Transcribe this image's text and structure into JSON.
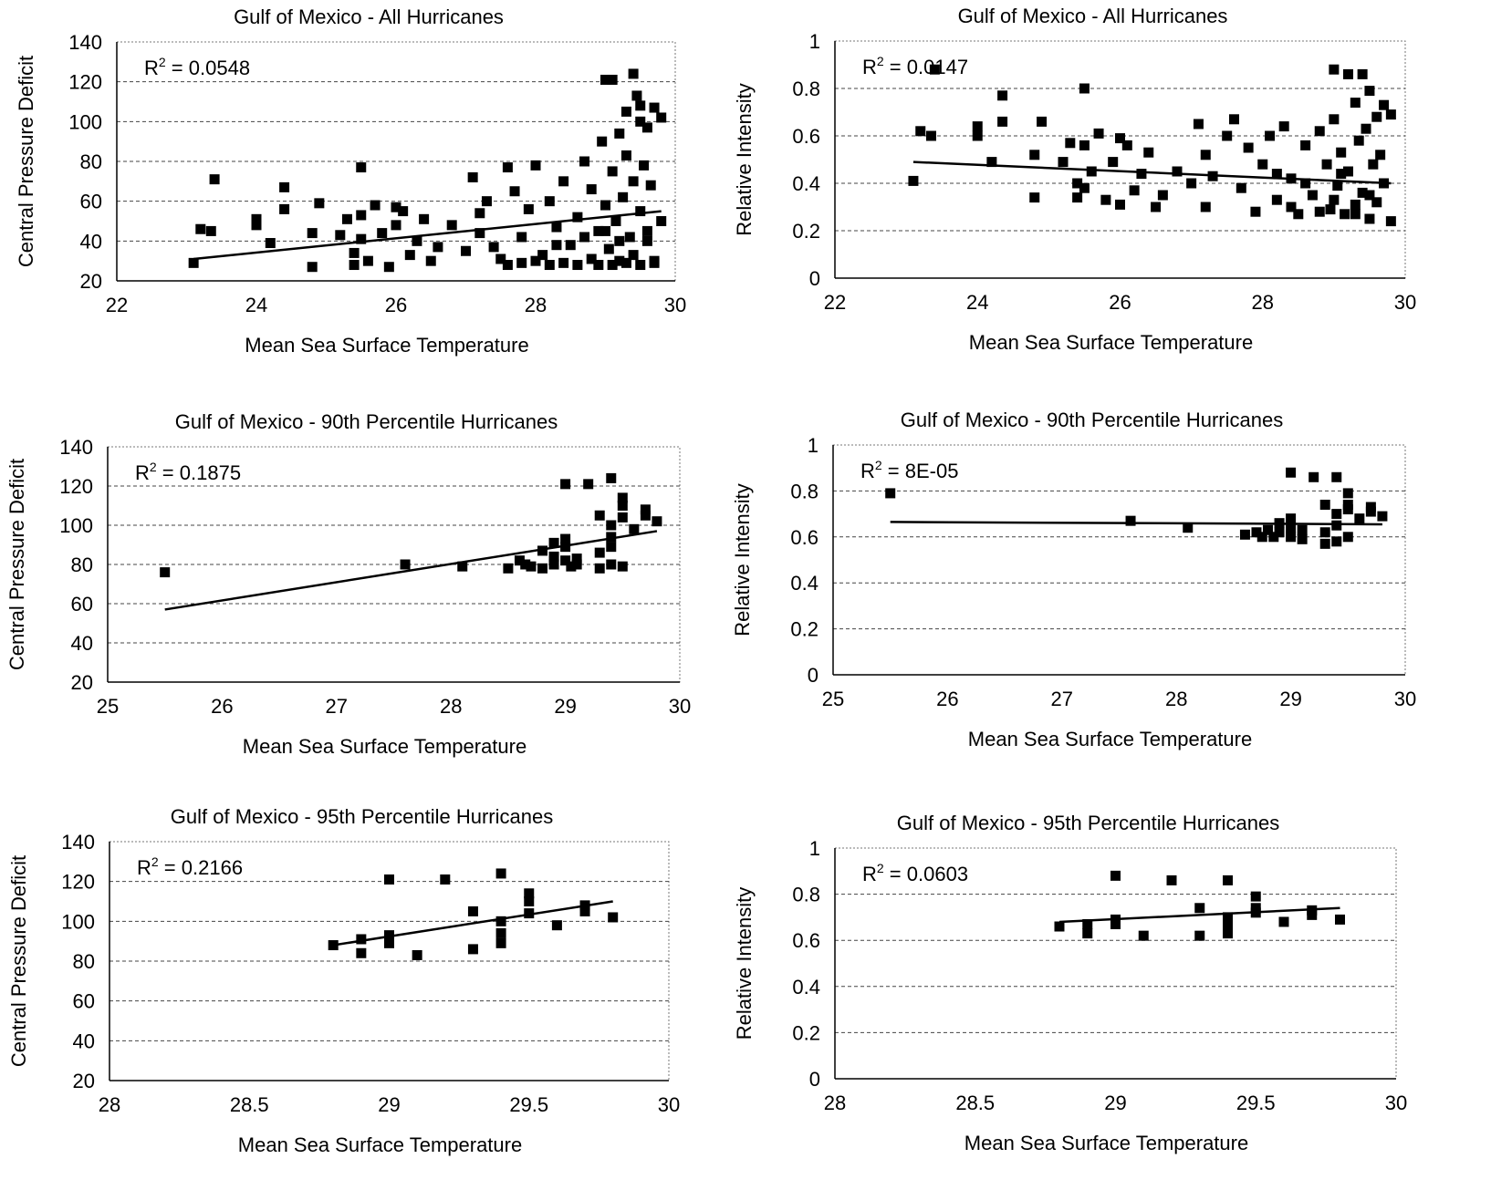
{
  "chart_data": [
    {
      "type": "scatter",
      "title": "Gulf of Mexico - All Hurricanes",
      "xlabel": "Mean Sea Surface Temperature",
      "ylabel": "Central Pressure Deficit",
      "xlim": [
        22,
        30
      ],
      "ylim": [
        20,
        140
      ],
      "xticks": [
        "22",
        "24",
        "26",
        "28",
        "30"
      ],
      "yticks": [
        "20",
        "40",
        "60",
        "80",
        "100",
        "120",
        "140"
      ],
      "grid": true,
      "r2": {
        "base": "R",
        "sup": "2",
        "value": " = 0.0548"
      },
      "trendline": [
        [
          23.1,
          31
        ],
        [
          29.8,
          55
        ]
      ],
      "points": [
        [
          23.1,
          29
        ],
        [
          23.2,
          46
        ],
        [
          23.35,
          45
        ],
        [
          23.4,
          71
        ],
        [
          24.0,
          48
        ],
        [
          24.0,
          51
        ],
        [
          24.2,
          39
        ],
        [
          24.4,
          56
        ],
        [
          24.4,
          67
        ],
        [
          24.8,
          44
        ],
        [
          24.8,
          27
        ],
        [
          24.9,
          59
        ],
        [
          25.2,
          43
        ],
        [
          25.3,
          51
        ],
        [
          25.4,
          28
        ],
        [
          25.4,
          34
        ],
        [
          25.5,
          53
        ],
        [
          25.5,
          41
        ],
        [
          25.5,
          77
        ],
        [
          25.6,
          30
        ],
        [
          25.7,
          58
        ],
        [
          25.8,
          44
        ],
        [
          25.9,
          27
        ],
        [
          26.0,
          48
        ],
        [
          26.0,
          57
        ],
        [
          26.1,
          55
        ],
        [
          26.2,
          33
        ],
        [
          26.3,
          40
        ],
        [
          26.4,
          51
        ],
        [
          26.5,
          30
        ],
        [
          26.6,
          37
        ],
        [
          26.8,
          48
        ],
        [
          27.0,
          35
        ],
        [
          27.1,
          72
        ],
        [
          27.2,
          54
        ],
        [
          27.2,
          44
        ],
        [
          27.3,
          60
        ],
        [
          27.4,
          37
        ],
        [
          27.5,
          31
        ],
        [
          27.6,
          77
        ],
        [
          27.7,
          65
        ],
        [
          27.8,
          42
        ],
        [
          27.9,
          56
        ],
        [
          28.0,
          78
        ],
        [
          28.1,
          33
        ],
        [
          28.2,
          60
        ],
        [
          28.3,
          47
        ],
        [
          28.4,
          70
        ],
        [
          28.5,
          38
        ],
        [
          28.6,
          52
        ],
        [
          28.7,
          80
        ],
        [
          28.8,
          66
        ],
        [
          28.8,
          31
        ],
        [
          28.9,
          45
        ],
        [
          28.95,
          90
        ],
        [
          29.0,
          121
        ],
        [
          29.0,
          58
        ],
        [
          29.05,
          36
        ],
        [
          29.1,
          75
        ],
        [
          29.1,
          121
        ],
        [
          29.15,
          50
        ],
        [
          29.2,
          94
        ],
        [
          29.2,
          30
        ],
        [
          29.25,
          62
        ],
        [
          29.3,
          83
        ],
        [
          29.3,
          105
        ],
        [
          29.35,
          42
        ],
        [
          29.4,
          124
        ],
        [
          29.4,
          70
        ],
        [
          29.4,
          33
        ],
        [
          29.45,
          113
        ],
        [
          29.5,
          100
        ],
        [
          29.5,
          55
        ],
        [
          29.5,
          108
        ],
        [
          29.55,
          78
        ],
        [
          29.6,
          97
        ],
        [
          29.6,
          40
        ],
        [
          29.65,
          68
        ],
        [
          29.7,
          107
        ],
        [
          29.7,
          30
        ],
        [
          29.8,
          102
        ],
        [
          29.8,
          50
        ],
        [
          27.6,
          28
        ],
        [
          27.8,
          29
        ],
        [
          28.0,
          30
        ],
        [
          28.2,
          28
        ],
        [
          28.4,
          29
        ],
        [
          28.6,
          28
        ],
        [
          28.9,
          28
        ],
        [
          29.1,
          28
        ],
        [
          29.3,
          29
        ],
        [
          29.5,
          28
        ],
        [
          29.7,
          29
        ],
        [
          28.3,
          38
        ],
        [
          28.7,
          42
        ],
        [
          29.0,
          45
        ],
        [
          29.2,
          40
        ],
        [
          29.6,
          45
        ]
      ]
    },
    {
      "type": "scatter",
      "title": "Gulf of Mexico - All Hurricanes",
      "xlabel": "Mean Sea Surface Temperature",
      "ylabel": "Relative Intensity",
      "xlim": [
        22,
        30
      ],
      "ylim": [
        0,
        1
      ],
      "xticks": [
        "22",
        "24",
        "26",
        "28",
        "30"
      ],
      "yticks": [
        "0",
        "0.2",
        "0.4",
        "0.6",
        "0.8",
        "1"
      ],
      "grid": true,
      "r2": {
        "base": "R",
        "sup": "2",
        "value": " = 0.0147"
      },
      "trendline": [
        [
          23.1,
          0.49
        ],
        [
          29.8,
          0.4
        ]
      ],
      "points": [
        [
          23.1,
          0.41
        ],
        [
          23.2,
          0.62
        ],
        [
          23.35,
          0.6
        ],
        [
          23.4,
          0.88
        ],
        [
          24.0,
          0.64
        ],
        [
          24.0,
          0.6
        ],
        [
          24.2,
          0.49
        ],
        [
          24.35,
          0.77
        ],
        [
          24.35,
          0.66
        ],
        [
          24.8,
          0.52
        ],
        [
          24.8,
          0.34
        ],
        [
          24.9,
          0.66
        ],
        [
          25.2,
          0.49
        ],
        [
          25.3,
          0.57
        ],
        [
          25.4,
          0.34
        ],
        [
          25.4,
          0.4
        ],
        [
          25.5,
          0.8
        ],
        [
          25.5,
          0.56
        ],
        [
          25.5,
          0.38
        ],
        [
          25.6,
          0.45
        ],
        [
          25.7,
          0.61
        ],
        [
          25.8,
          0.33
        ],
        [
          25.9,
          0.49
        ],
        [
          26.0,
          0.59
        ],
        [
          26.0,
          0.31
        ],
        [
          26.1,
          0.56
        ],
        [
          26.2,
          0.37
        ],
        [
          26.3,
          0.44
        ],
        [
          26.4,
          0.53
        ],
        [
          26.5,
          0.3
        ],
        [
          26.6,
          0.35
        ],
        [
          26.8,
          0.45
        ],
        [
          27.0,
          0.4
        ],
        [
          27.1,
          0.65
        ],
        [
          27.2,
          0.52
        ],
        [
          27.2,
          0.3
        ],
        [
          27.3,
          0.43
        ],
        [
          27.5,
          0.6
        ],
        [
          27.6,
          0.67
        ],
        [
          27.7,
          0.38
        ],
        [
          27.8,
          0.55
        ],
        [
          27.9,
          0.28
        ],
        [
          28.0,
          0.48
        ],
        [
          28.1,
          0.6
        ],
        [
          28.2,
          0.33
        ],
        [
          28.3,
          0.64
        ],
        [
          28.4,
          0.42
        ],
        [
          28.5,
          0.27
        ],
        [
          28.6,
          0.56
        ],
        [
          28.7,
          0.35
        ],
        [
          28.8,
          0.62
        ],
        [
          28.9,
          0.48
        ],
        [
          28.95,
          0.29
        ],
        [
          29.0,
          0.88
        ],
        [
          29.0,
          0.67
        ],
        [
          29.05,
          0.39
        ],
        [
          29.1,
          0.53
        ],
        [
          29.15,
          0.27
        ],
        [
          29.2,
          0.86
        ],
        [
          29.2,
          0.45
        ],
        [
          29.3,
          0.74
        ],
        [
          29.3,
          0.31
        ],
        [
          29.35,
          0.58
        ],
        [
          29.4,
          0.86
        ],
        [
          29.4,
          0.36
        ],
        [
          29.45,
          0.63
        ],
        [
          29.5,
          0.79
        ],
        [
          29.5,
          0.25
        ],
        [
          29.55,
          0.48
        ],
        [
          29.6,
          0.68
        ],
        [
          29.6,
          0.32
        ],
        [
          29.65,
          0.52
        ],
        [
          29.7,
          0.73
        ],
        [
          29.7,
          0.4
        ],
        [
          29.8,
          0.69
        ],
        [
          29.8,
          0.24
        ],
        [
          28.4,
          0.3
        ],
        [
          28.8,
          0.28
        ],
        [
          29.0,
          0.33
        ],
        [
          29.3,
          0.27
        ],
        [
          29.5,
          0.35
        ],
        [
          28.2,
          0.44
        ],
        [
          28.6,
          0.4
        ],
        [
          29.1,
          0.44
        ]
      ]
    },
    {
      "type": "scatter",
      "title": "Gulf of Mexico - 90th Percentile Hurricanes",
      "xlabel": "Mean Sea Surface Temperature",
      "ylabel": "Central Pressure Deficit",
      "xlim": [
        25,
        30
      ],
      "ylim": [
        20,
        140
      ],
      "xticks": [
        "25",
        "26",
        "27",
        "28",
        "29",
        "30"
      ],
      "yticks": [
        "20",
        "40",
        "60",
        "80",
        "100",
        "120",
        "140"
      ],
      "grid": true,
      "r2": {
        "base": "R",
        "sup": "2",
        "value": " = 0.1875"
      },
      "trendline": [
        [
          25.5,
          57
        ],
        [
          29.8,
          97
        ]
      ],
      "points": [
        [
          25.5,
          76
        ],
        [
          27.6,
          80
        ],
        [
          28.1,
          79
        ],
        [
          28.5,
          78
        ],
        [
          28.6,
          82
        ],
        [
          28.65,
          80
        ],
        [
          28.7,
          79
        ],
        [
          28.8,
          78
        ],
        [
          28.8,
          87
        ],
        [
          28.9,
          80
        ],
        [
          28.9,
          91
        ],
        [
          28.9,
          84
        ],
        [
          29.0,
          121
        ],
        [
          29.0,
          93
        ],
        [
          29.0,
          89
        ],
        [
          29.0,
          82
        ],
        [
          29.05,
          79
        ],
        [
          29.1,
          80
        ],
        [
          29.1,
          83
        ],
        [
          29.2,
          121
        ],
        [
          29.3,
          105
        ],
        [
          29.3,
          86
        ],
        [
          29.3,
          78
        ],
        [
          29.4,
          124
        ],
        [
          29.4,
          100
        ],
        [
          29.4,
          94
        ],
        [
          29.4,
          89
        ],
        [
          29.4,
          80
        ],
        [
          29.5,
          114
        ],
        [
          29.5,
          110
        ],
        [
          29.5,
          104
        ],
        [
          29.5,
          79
        ],
        [
          29.6,
          98
        ],
        [
          29.7,
          108
        ],
        [
          29.7,
          105
        ],
        [
          29.8,
          102
        ]
      ]
    },
    {
      "type": "scatter",
      "title": "Gulf of Mexico - 90th Percentile Hurricanes",
      "xlabel": "Mean Sea Surface Temperature",
      "ylabel": "Relative Intensity",
      "xlim": [
        25,
        30
      ],
      "ylim": [
        0,
        1
      ],
      "xticks": [
        "25",
        "26",
        "27",
        "28",
        "29",
        "30"
      ],
      "yticks": [
        "0",
        "0.2",
        "0.4",
        "0.6",
        "0.8",
        "1"
      ],
      "grid": true,
      "r2": {
        "base": "R",
        "sup": "2",
        "value": " = 8E-05"
      },
      "trendline": [
        [
          25.5,
          0.665
        ],
        [
          29.8,
          0.655
        ]
      ],
      "points": [
        [
          25.5,
          0.79
        ],
        [
          27.6,
          0.67
        ],
        [
          28.1,
          0.64
        ],
        [
          28.6,
          0.61
        ],
        [
          28.7,
          0.62
        ],
        [
          28.75,
          0.6
        ],
        [
          28.8,
          0.63
        ],
        [
          28.85,
          0.6
        ],
        [
          28.9,
          0.66
        ],
        [
          28.9,
          0.62
        ],
        [
          29.0,
          0.88
        ],
        [
          29.0,
          0.68
        ],
        [
          29.0,
          0.64
        ],
        [
          29.0,
          0.6
        ],
        [
          29.1,
          0.59
        ],
        [
          29.1,
          0.63
        ],
        [
          29.2,
          0.86
        ],
        [
          29.3,
          0.74
        ],
        [
          29.3,
          0.62
        ],
        [
          29.3,
          0.57
        ],
        [
          29.4,
          0.86
        ],
        [
          29.4,
          0.7
        ],
        [
          29.4,
          0.65
        ],
        [
          29.4,
          0.58
        ],
        [
          29.5,
          0.79
        ],
        [
          29.5,
          0.74
        ],
        [
          29.5,
          0.72
        ],
        [
          29.5,
          0.6
        ],
        [
          29.6,
          0.68
        ],
        [
          29.7,
          0.73
        ],
        [
          29.7,
          0.71
        ],
        [
          29.8,
          0.69
        ]
      ]
    },
    {
      "type": "scatter",
      "title": "Gulf of Mexico - 95th Percentile Hurricanes",
      "xlabel": "Mean Sea Surface Temperature",
      "ylabel": "Central Pressure Deficit",
      "xlim": [
        28,
        30
      ],
      "ylim": [
        20,
        140
      ],
      "xticks": [
        "28",
        "28.5",
        "29",
        "29.5",
        "30"
      ],
      "yticks": [
        "20",
        "40",
        "60",
        "80",
        "100",
        "120",
        "140"
      ],
      "grid": true,
      "r2": {
        "base": "R",
        "sup": "2",
        "value": " = 0.2166"
      },
      "trendline": [
        [
          28.8,
          88
        ],
        [
          29.8,
          110
        ]
      ],
      "points": [
        [
          28.8,
          88
        ],
        [
          28.9,
          91
        ],
        [
          28.9,
          84
        ],
        [
          29.0,
          121
        ],
        [
          29.0,
          93
        ],
        [
          29.0,
          89
        ],
        [
          29.1,
          83
        ],
        [
          29.2,
          121
        ],
        [
          29.3,
          105
        ],
        [
          29.3,
          86
        ],
        [
          29.4,
          124
        ],
        [
          29.4,
          100
        ],
        [
          29.4,
          94
        ],
        [
          29.4,
          89
        ],
        [
          29.5,
          114
        ],
        [
          29.5,
          110
        ],
        [
          29.5,
          104
        ],
        [
          29.6,
          98
        ],
        [
          29.7,
          108
        ],
        [
          29.7,
          105
        ],
        [
          29.8,
          102
        ]
      ]
    },
    {
      "type": "scatter",
      "title": "Gulf of Mexico - 95th Percentile Hurricanes",
      "xlabel": "Mean Sea Surface Temperature",
      "ylabel": "Relative Intensity",
      "xlim": [
        28,
        30
      ],
      "ylim": [
        0,
        1
      ],
      "xticks": [
        "28",
        "28.5",
        "29",
        "29.5",
        "30"
      ],
      "yticks": [
        "0",
        "0.2",
        "0.4",
        "0.6",
        "0.8",
        "1"
      ],
      "grid": true,
      "r2": {
        "base": "R",
        "sup": "2",
        "value": " = 0.0603"
      },
      "trendline": [
        [
          28.8,
          0.68
        ],
        [
          29.8,
          0.74
        ]
      ],
      "points": [
        [
          28.8,
          0.66
        ],
        [
          28.9,
          0.67
        ],
        [
          28.9,
          0.63
        ],
        [
          29.0,
          0.88
        ],
        [
          29.0,
          0.69
        ],
        [
          29.0,
          0.67
        ],
        [
          29.1,
          0.62
        ],
        [
          29.2,
          0.86
        ],
        [
          29.3,
          0.74
        ],
        [
          29.3,
          0.62
        ],
        [
          29.4,
          0.86
        ],
        [
          29.4,
          0.7
        ],
        [
          29.4,
          0.66
        ],
        [
          29.4,
          0.63
        ],
        [
          29.5,
          0.79
        ],
        [
          29.5,
          0.74
        ],
        [
          29.5,
          0.72
        ],
        [
          29.6,
          0.68
        ],
        [
          29.7,
          0.73
        ],
        [
          29.7,
          0.71
        ],
        [
          29.8,
          0.69
        ]
      ]
    }
  ]
}
